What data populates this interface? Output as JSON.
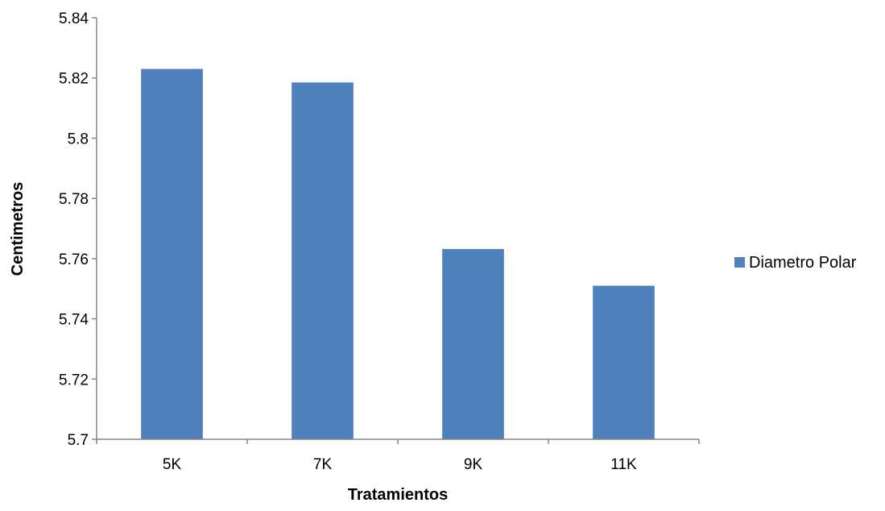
{
  "chart_data": {
    "type": "bar",
    "categories": [
      "5K",
      "7K",
      "9K",
      "11K"
    ],
    "series": [
      {
        "name": "Diametro Polar",
        "values": [
          5.823,
          5.8185,
          5.7632,
          5.751
        ]
      }
    ],
    "title": "",
    "xlabel": "Tratamientos",
    "ylabel": "Centimetros",
    "ylim": [
      5.7,
      5.84
    ],
    "yticks": [
      "5.7",
      "5.72",
      "5.74",
      "5.76",
      "5.78",
      "5.8",
      "5.82",
      "5.84"
    ],
    "grid": false,
    "legend_position": "right",
    "colors": {
      "bar": "#4F81BD",
      "axis": "#868686"
    }
  }
}
